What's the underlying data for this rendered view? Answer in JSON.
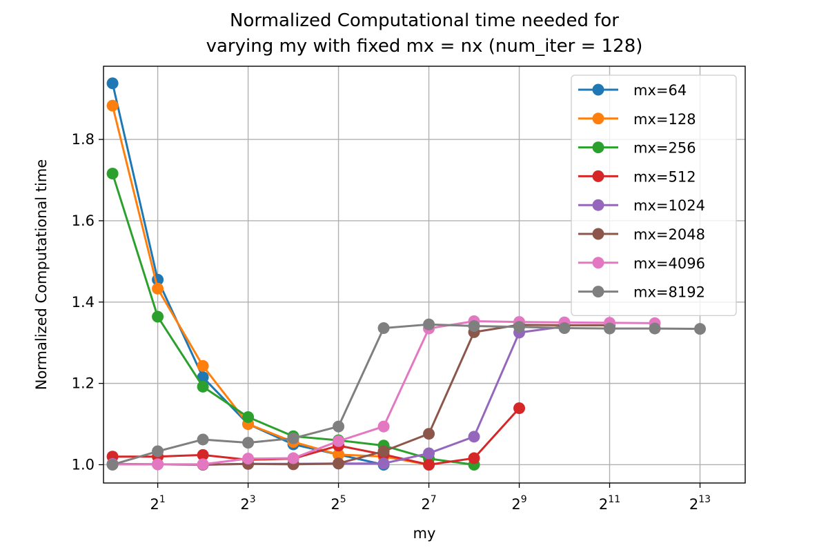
{
  "chart_data": {
    "type": "line",
    "title_lines": [
      "Normalized Computational time needed for",
      "varying my with fixed mx = nx (num_iter = 128)"
    ],
    "xlabel": "my",
    "ylabel": "Normalized Computational time",
    "xscale": "log2",
    "xlim_log2": [
      -0.2,
      14.0
    ],
    "ylim": [
      0.955,
      1.98
    ],
    "grid": true,
    "legend_position": "upper right",
    "x_ticks": [
      {
        "base": "2",
        "exp": "1",
        "log2": 1
      },
      {
        "base": "2",
        "exp": "3",
        "log2": 3
      },
      {
        "base": "2",
        "exp": "5",
        "log2": 5
      },
      {
        "base": "2",
        "exp": "7",
        "log2": 7
      },
      {
        "base": "2",
        "exp": "9",
        "log2": 9
      },
      {
        "base": "2",
        "exp": "11",
        "log2": 11
      },
      {
        "base": "2",
        "exp": "13",
        "log2": 13
      }
    ],
    "y_ticks": [
      {
        "label": "1.0",
        "value": 1.0
      },
      {
        "label": "1.2",
        "value": 1.2
      },
      {
        "label": "1.4",
        "value": 1.4
      },
      {
        "label": "1.6",
        "value": 1.6
      },
      {
        "label": "1.8",
        "value": 1.8
      }
    ],
    "series": [
      {
        "name": "mx=64",
        "color": "#1f77b4",
        "x": [
          1,
          2,
          4,
          8,
          16,
          32,
          64
        ],
        "y": [
          1.938,
          1.455,
          1.215,
          1.1,
          1.05,
          1.025,
          1.0
        ]
      },
      {
        "name": "mx=128",
        "color": "#ff7f0e",
        "x": [
          1,
          2,
          4,
          8,
          16,
          32,
          64,
          128
        ],
        "y": [
          1.883,
          1.433,
          1.243,
          1.1,
          1.056,
          1.025,
          1.02,
          1.0
        ]
      },
      {
        "name": "mx=256",
        "color": "#2ca02c",
        "x": [
          1,
          2,
          4,
          8,
          16,
          32,
          64,
          128,
          256
        ],
        "y": [
          1.716,
          1.364,
          1.192,
          1.117,
          1.07,
          1.06,
          1.047,
          1.015,
          1.0
        ]
      },
      {
        "name": "mx=512",
        "color": "#d62728",
        "x": [
          1,
          2,
          4,
          8,
          16,
          32,
          64,
          128,
          256,
          512
        ],
        "y": [
          1.02,
          1.02,
          1.024,
          1.012,
          1.015,
          1.047,
          1.025,
          1.0,
          1.016,
          1.139
        ]
      },
      {
        "name": "mx=1024",
        "color": "#9467bd",
        "x": [
          1,
          2,
          4,
          8,
          16,
          32,
          64,
          128,
          256,
          512,
          1024
        ],
        "y": [
          1.002,
          1.001,
          1.0,
          1.002,
          1.002,
          1.003,
          1.003,
          1.028,
          1.069,
          1.325,
          1.34
        ]
      },
      {
        "name": "mx=2048",
        "color": "#8c564b",
        "x": [
          1,
          2,
          4,
          8,
          16,
          32,
          64,
          128,
          256,
          512,
          1024,
          2048
        ],
        "y": [
          1.001,
          1.001,
          1.0,
          1.002,
          1.001,
          1.003,
          1.033,
          1.076,
          1.326,
          1.344,
          1.343,
          1.343
        ]
      },
      {
        "name": "mx=4096",
        "color": "#e377c2",
        "x": [
          1,
          2,
          4,
          8,
          16,
          32,
          64,
          128,
          256,
          512,
          1024,
          2048,
          4096
        ],
        "y": [
          1.001,
          1.001,
          1.001,
          1.015,
          1.016,
          1.058,
          1.094,
          1.335,
          1.353,
          1.351,
          1.35,
          1.349,
          1.348
        ]
      },
      {
        "name": "mx=8192",
        "color": "#7f7f7f",
        "x": [
          1,
          2,
          4,
          8,
          16,
          32,
          64,
          128,
          256,
          512,
          1024,
          2048,
          4096,
          8192
        ],
        "y": [
          1.0,
          1.033,
          1.062,
          1.054,
          1.065,
          1.094,
          1.336,
          1.345,
          1.341,
          1.339,
          1.336,
          1.335,
          1.335,
          1.334
        ]
      }
    ]
  }
}
